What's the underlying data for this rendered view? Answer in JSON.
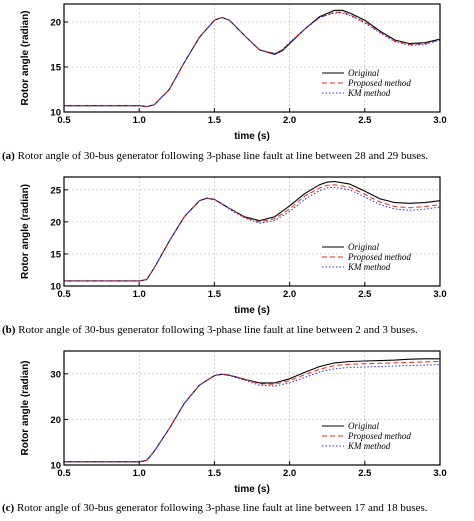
{
  "chart_data": [
    {
      "type": "line",
      "panel_label": "(a)",
      "caption": "Rotor angle of 30-bus generator following 3-phase line fault at line between 28 and 29 buses.",
      "xlabel": "time (s)",
      "ylabel": "Rotor angle (radian)",
      "xlim": [
        0.5,
        3.0
      ],
      "ylim": [
        10,
        22
      ],
      "xticks": [
        "0.5",
        "1.0",
        "1.5",
        "2.0",
        "2.5",
        "3.0"
      ],
      "yticks": [
        "10",
        "15",
        "20"
      ],
      "grid": true,
      "legend_position": "lower-right",
      "series": [
        {
          "name": "Original",
          "color": "#000000",
          "style": "solid",
          "x": [
            0.5,
            1.0,
            1.05,
            1.1,
            1.2,
            1.3,
            1.4,
            1.5,
            1.55,
            1.6,
            1.7,
            1.8,
            1.9,
            1.95,
            2.0,
            2.1,
            2.2,
            2.3,
            2.35,
            2.4,
            2.5,
            2.6,
            2.7,
            2.8,
            2.9,
            3.0
          ],
          "y": [
            10.7,
            10.7,
            10.6,
            10.8,
            12.5,
            15.5,
            18.3,
            20.2,
            20.5,
            20.2,
            18.5,
            16.9,
            16.4,
            16.8,
            17.6,
            19.2,
            20.6,
            21.3,
            21.3,
            21.0,
            20.2,
            19.0,
            18.0,
            17.6,
            17.7,
            18.1
          ]
        },
        {
          "name": "Proposed method",
          "color": "#e8291c",
          "style": "dashed",
          "x": [
            0.5,
            1.0,
            1.05,
            1.1,
            1.2,
            1.3,
            1.4,
            1.5,
            1.55,
            1.6,
            1.7,
            1.8,
            1.9,
            1.95,
            2.0,
            2.1,
            2.2,
            2.3,
            2.35,
            2.4,
            2.5,
            2.6,
            2.7,
            2.8,
            2.9,
            3.0
          ],
          "y": [
            10.7,
            10.7,
            10.6,
            10.8,
            12.5,
            15.5,
            18.3,
            20.2,
            20.5,
            20.2,
            18.5,
            16.9,
            16.5,
            16.9,
            17.7,
            19.2,
            20.5,
            21.1,
            21.1,
            20.8,
            20.0,
            18.9,
            17.9,
            17.5,
            17.6,
            18.0
          ]
        },
        {
          "name": "KM method",
          "color": "#2b2bd6",
          "style": "dotted",
          "x": [
            0.5,
            1.0,
            1.05,
            1.1,
            1.2,
            1.3,
            1.4,
            1.5,
            1.55,
            1.6,
            1.7,
            1.8,
            1.9,
            1.95,
            2.0,
            2.1,
            2.2,
            2.3,
            2.35,
            2.4,
            2.5,
            2.6,
            2.7,
            2.8,
            2.9,
            3.0
          ],
          "y": [
            10.7,
            10.7,
            10.6,
            10.8,
            12.5,
            15.5,
            18.3,
            20.2,
            20.5,
            20.2,
            18.5,
            16.9,
            16.5,
            16.9,
            17.7,
            19.2,
            20.5,
            21.0,
            21.0,
            20.7,
            19.9,
            18.8,
            17.8,
            17.4,
            17.5,
            18.0
          ]
        }
      ]
    },
    {
      "type": "line",
      "panel_label": "(b)",
      "caption": "Rotor angle of 30-bus generator following 3-phase line fault at line between 2 and 3 buses.",
      "xlabel": "time (s)",
      "ylabel": "Rotor angle (radian)",
      "xlim": [
        0.5,
        3.0
      ],
      "ylim": [
        10,
        27
      ],
      "xticks": [
        "0.5",
        "1.0",
        "1.5",
        "2.0",
        "2.5",
        "3.0"
      ],
      "yticks": [
        "10",
        "15",
        "20",
        "25"
      ],
      "grid": true,
      "legend_position": "lower-right",
      "series": [
        {
          "name": "Original",
          "color": "#000000",
          "style": "solid",
          "x": [
            0.5,
            1.0,
            1.05,
            1.1,
            1.2,
            1.3,
            1.4,
            1.45,
            1.5,
            1.6,
            1.7,
            1.8,
            1.9,
            2.0,
            2.1,
            2.2,
            2.25,
            2.3,
            2.4,
            2.5,
            2.6,
            2.7,
            2.8,
            2.9,
            3.0
          ],
          "y": [
            10.8,
            10.8,
            11.0,
            12.8,
            17.0,
            20.8,
            23.3,
            23.7,
            23.5,
            22.1,
            20.8,
            20.2,
            20.8,
            22.5,
            24.4,
            25.8,
            26.2,
            26.3,
            25.9,
            24.8,
            23.6,
            23.0,
            22.9,
            23.0,
            23.3
          ]
        },
        {
          "name": "Proposed method",
          "color": "#e8291c",
          "style": "dashed",
          "x": [
            0.5,
            1.0,
            1.05,
            1.1,
            1.2,
            1.3,
            1.4,
            1.45,
            1.5,
            1.6,
            1.7,
            1.8,
            1.9,
            2.0,
            2.1,
            2.2,
            2.25,
            2.3,
            2.4,
            2.5,
            2.6,
            2.7,
            2.8,
            2.9,
            3.0
          ],
          "y": [
            10.8,
            10.8,
            11.0,
            12.8,
            17.0,
            20.8,
            23.3,
            23.7,
            23.5,
            22.1,
            20.7,
            20.0,
            20.5,
            22.0,
            24.0,
            25.3,
            25.7,
            25.8,
            25.4,
            24.3,
            23.1,
            22.4,
            22.2,
            22.4,
            22.7
          ]
        },
        {
          "name": "KM method",
          "color": "#2b2bd6",
          "style": "dotted",
          "x": [
            0.5,
            1.0,
            1.05,
            1.1,
            1.2,
            1.3,
            1.4,
            1.45,
            1.5,
            1.6,
            1.7,
            1.8,
            1.9,
            2.0,
            2.1,
            2.2,
            2.25,
            2.3,
            2.4,
            2.5,
            2.6,
            2.7,
            2.8,
            2.9,
            3.0
          ],
          "y": [
            10.8,
            10.8,
            11.0,
            12.8,
            17.0,
            20.8,
            23.3,
            23.7,
            23.5,
            22.0,
            20.6,
            19.8,
            20.2,
            21.6,
            23.5,
            24.9,
            25.3,
            25.4,
            25.0,
            23.9,
            22.7,
            22.0,
            21.8,
            22.0,
            22.3
          ]
        }
      ]
    },
    {
      "type": "line",
      "panel_label": "(c)",
      "caption": "Rotor angle of 30-bus generator following 3-phase line fault at line between 17 and 18 buses.",
      "xlabel": "time (s)",
      "ylabel": "Rotor angle (radian)",
      "xlim": [
        0.5,
        3.0
      ],
      "ylim": [
        10,
        35
      ],
      "xticks": [
        "0.5",
        "1.0",
        "1.5",
        "2.0",
        "2.5",
        "3.0"
      ],
      "yticks": [
        "10",
        "20",
        "30"
      ],
      "grid": true,
      "legend_position": "lower-right",
      "series": [
        {
          "name": "Original",
          "color": "#000000",
          "style": "solid",
          "x": [
            0.5,
            1.0,
            1.05,
            1.1,
            1.2,
            1.3,
            1.4,
            1.5,
            1.55,
            1.6,
            1.7,
            1.8,
            1.9,
            2.0,
            2.1,
            2.2,
            2.3,
            2.4,
            2.5,
            2.6,
            2.7,
            2.8,
            2.9,
            3.0
          ],
          "y": [
            10.7,
            10.7,
            11.0,
            13.0,
            18.0,
            23.5,
            27.5,
            29.6,
            29.9,
            29.7,
            28.8,
            28.0,
            28.0,
            28.9,
            30.3,
            31.6,
            32.4,
            32.7,
            32.8,
            32.9,
            33.0,
            33.2,
            33.3,
            33.3
          ]
        },
        {
          "name": "Proposed method",
          "color": "#e8291c",
          "style": "dashed",
          "x": [
            0.5,
            1.0,
            1.05,
            1.1,
            1.2,
            1.3,
            1.4,
            1.5,
            1.55,
            1.6,
            1.7,
            1.8,
            1.9,
            2.0,
            2.1,
            2.2,
            2.3,
            2.4,
            2.5,
            2.6,
            2.7,
            2.8,
            2.9,
            3.0
          ],
          "y": [
            10.7,
            10.7,
            11.0,
            13.0,
            18.0,
            23.5,
            27.5,
            29.6,
            29.9,
            29.7,
            28.8,
            27.8,
            27.7,
            28.5,
            29.8,
            31.0,
            31.8,
            32.1,
            32.2,
            32.3,
            32.4,
            32.5,
            32.6,
            32.7
          ]
        },
        {
          "name": "KM method",
          "color": "#2b2bd6",
          "style": "dotted",
          "x": [
            0.5,
            1.0,
            1.05,
            1.1,
            1.2,
            1.3,
            1.4,
            1.5,
            1.55,
            1.6,
            1.7,
            1.8,
            1.9,
            2.0,
            2.1,
            2.2,
            2.3,
            2.4,
            2.5,
            2.6,
            2.7,
            2.8,
            2.9,
            3.0
          ],
          "y": [
            10.7,
            10.7,
            11.0,
            13.0,
            18.0,
            23.5,
            27.5,
            29.6,
            29.9,
            29.6,
            28.6,
            27.5,
            27.3,
            28.0,
            29.2,
            30.4,
            31.1,
            31.4,
            31.5,
            31.6,
            31.7,
            31.8,
            31.9,
            32.0
          ]
        }
      ]
    }
  ]
}
